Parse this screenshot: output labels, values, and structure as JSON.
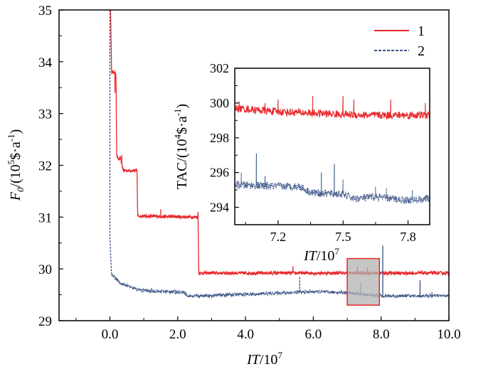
{
  "colors": {
    "series1": "#e8262a",
    "series2": "#3b5487",
    "highlight_fill": "#b3b3b3",
    "highlight_stroke": "#e8262a"
  },
  "chart_data": [
    {
      "type": "line",
      "xlabel_main": "IT",
      "xlabel_unit": "/10",
      "xlabel_exp": "7",
      "ylabel_main": "F",
      "ylabel_sub": "0",
      "ylabel_unit_a": "/(10",
      "ylabel_exp_a": "5",
      "ylabel_unit_b": "$·a",
      "ylabel_exp_b": "-1",
      "ylabel_close": ")",
      "xlim": [
        -1.5,
        10.0
      ],
      "ylim": [
        29,
        35
      ],
      "xticks": [
        "0.0",
        "2.0",
        "4.0",
        "6.0",
        "8.0",
        "10.0"
      ],
      "xtick_values": [
        0,
        2,
        4,
        6,
        8,
        10
      ],
      "yticks": [
        "29",
        "30",
        "31",
        "32",
        "33",
        "34",
        "35"
      ],
      "ytick_values": [
        29,
        30,
        31,
        32,
        33,
        34,
        35
      ],
      "legend": [
        {
          "label": "1",
          "style": "solid"
        },
        {
          "label": "2",
          "style": "dashed"
        }
      ],
      "legend_placement": "top-right",
      "series": [
        {
          "name": "1",
          "style": "solid",
          "noise": 0.03,
          "points": [
            [
              0.02,
              35.0
            ],
            [
              0.05,
              33.8
            ],
            [
              0.18,
              33.78
            ],
            [
              0.2,
              32.2
            ],
            [
              0.25,
              32.1
            ],
            [
              0.3,
              32.15
            ],
            [
              0.4,
              31.9
            ],
            [
              0.8,
              31.9
            ],
            [
              0.82,
              31.02
            ],
            [
              2.6,
              31.0
            ],
            [
              2.62,
              29.92
            ],
            [
              10.0,
              29.92
            ]
          ],
          "spikes": [
            [
              0.15,
              33.4
            ],
            [
              0.35,
              32.2
            ],
            [
              1.5,
              31.15
            ],
            [
              2.6,
              31.1
            ],
            [
              5.4,
              30.05
            ],
            [
              7.3,
              30.05
            ],
            [
              7.6,
              30.03
            ]
          ]
        },
        {
          "name": "2",
          "style": "dashed",
          "noise": 0.03,
          "points": [
            [
              0.0,
              35.0
            ],
            [
              0.0,
              30.6
            ],
            [
              0.05,
              29.88
            ],
            [
              0.2,
              29.8
            ],
            [
              0.3,
              29.72
            ],
            [
              0.5,
              29.68
            ],
            [
              0.7,
              29.62
            ],
            [
              1.0,
              29.58
            ],
            [
              2.2,
              29.55
            ],
            [
              2.3,
              29.47
            ],
            [
              3.5,
              29.5
            ],
            [
              4.5,
              29.52
            ],
            [
              6.0,
              29.56
            ],
            [
              7.0,
              29.54
            ],
            [
              8.0,
              29.48
            ],
            [
              10.0,
              29.48
            ]
          ],
          "spikes": [
            [
              5.6,
              29.85
            ],
            [
              7.4,
              29.75
            ],
            [
              8.05,
              30.45
            ],
            [
              9.15,
              29.78
            ],
            [
              9.5,
              29.55
            ]
          ]
        }
      ],
      "highlight_region": {
        "x": [
          7.0,
          7.95
        ],
        "y": [
          29.3,
          30.2
        ]
      }
    },
    {
      "type": "line",
      "xlabel_main": "IT",
      "xlabel_unit": "/10",
      "xlabel_exp": "7",
      "ylabel_main": "TAC/(10",
      "ylabel_exp_a": "4",
      "ylabel_unit_b": "$·a",
      "ylabel_exp_b": "-1",
      "ylabel_close": ")",
      "xlim": [
        7.0,
        7.9
      ],
      "ylim": [
        293,
        302
      ],
      "xticks": [
        "7.2",
        "7.5",
        "7.8"
      ],
      "xtick_values": [
        7.2,
        7.5,
        7.8
      ],
      "yticks": [
        "294",
        "296",
        "298",
        "300",
        "302"
      ],
      "ytick_values": [
        294,
        296,
        298,
        300,
        302
      ],
      "series": [
        {
          "name": "1",
          "style": "solid",
          "noise": 0.22,
          "points": [
            [
              7.0,
              299.7
            ],
            [
              7.2,
              299.5
            ],
            [
              7.4,
              299.4
            ],
            [
              7.6,
              299.3
            ],
            [
              7.9,
              299.3
            ]
          ],
          "spikes": [
            [
              7.02,
              300.1
            ],
            [
              7.14,
              300.0
            ],
            [
              7.2,
              300.2
            ],
            [
              7.36,
              300.4
            ],
            [
              7.5,
              300.4
            ],
            [
              7.55,
              300.2
            ],
            [
              7.72,
              300.2
            ],
            [
              7.88,
              300.0
            ]
          ]
        },
        {
          "name": "2",
          "style": "dotted",
          "noise": 0.22,
          "points": [
            [
              7.0,
              295.3
            ],
            [
              7.2,
              295.2
            ],
            [
              7.3,
              295.2
            ],
            [
              7.35,
              294.85
            ],
            [
              7.5,
              294.75
            ],
            [
              7.55,
              294.5
            ],
            [
              7.65,
              294.6
            ],
            [
              7.8,
              294.4
            ],
            [
              7.9,
              294.5
            ]
          ],
          "spikes": [
            [
              7.03,
              296.0
            ],
            [
              7.1,
              297.1
            ],
            [
              7.14,
              295.8
            ],
            [
              7.4,
              296.0
            ],
            [
              7.46,
              296.5
            ],
            [
              7.5,
              295.6
            ],
            [
              7.65,
              295.2
            ],
            [
              7.7,
              295.1
            ],
            [
              7.82,
              295.0
            ]
          ]
        }
      ]
    }
  ]
}
